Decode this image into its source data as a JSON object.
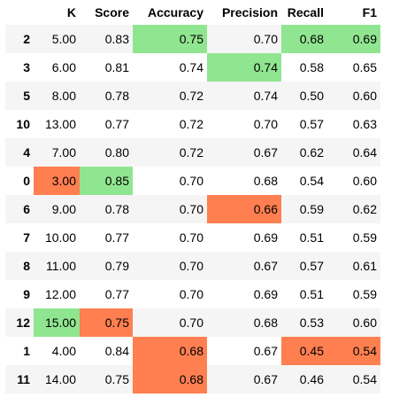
{
  "table": {
    "index_header": "",
    "columns": [
      {
        "key": "K",
        "label": "K"
      },
      {
        "key": "Score",
        "label": "Score"
      },
      {
        "key": "Accuracy",
        "label": "Accuracy"
      },
      {
        "key": "Precision",
        "label": "Precision"
      },
      {
        "key": "Recall",
        "label": "Recall"
      },
      {
        "key": "F1",
        "label": "F1"
      }
    ],
    "highlight_colors": {
      "max": "#90e690",
      "min": "#ff7f50"
    },
    "rows": [
      {
        "index": "2",
        "cells": [
          {
            "v": "5.00"
          },
          {
            "v": "0.83"
          },
          {
            "v": "0.75",
            "hl": "max"
          },
          {
            "v": "0.70"
          },
          {
            "v": "0.68",
            "hl": "max"
          },
          {
            "v": "0.69",
            "hl": "max"
          }
        ]
      },
      {
        "index": "3",
        "cells": [
          {
            "v": "6.00"
          },
          {
            "v": "0.81"
          },
          {
            "v": "0.74"
          },
          {
            "v": "0.74",
            "hl": "max"
          },
          {
            "v": "0.58"
          },
          {
            "v": "0.65"
          }
        ]
      },
      {
        "index": "5",
        "cells": [
          {
            "v": "8.00"
          },
          {
            "v": "0.78"
          },
          {
            "v": "0.72"
          },
          {
            "v": "0.74"
          },
          {
            "v": "0.50"
          },
          {
            "v": "0.60"
          }
        ]
      },
      {
        "index": "10",
        "cells": [
          {
            "v": "13.00"
          },
          {
            "v": "0.77"
          },
          {
            "v": "0.72"
          },
          {
            "v": "0.70"
          },
          {
            "v": "0.57"
          },
          {
            "v": "0.63"
          }
        ]
      },
      {
        "index": "4",
        "cells": [
          {
            "v": "7.00"
          },
          {
            "v": "0.80"
          },
          {
            "v": "0.72"
          },
          {
            "v": "0.67"
          },
          {
            "v": "0.62"
          },
          {
            "v": "0.64"
          }
        ]
      },
      {
        "index": "0",
        "cells": [
          {
            "v": "3.00",
            "hl": "min"
          },
          {
            "v": "0.85",
            "hl": "max"
          },
          {
            "v": "0.70"
          },
          {
            "v": "0.68"
          },
          {
            "v": "0.54"
          },
          {
            "v": "0.60"
          }
        ]
      },
      {
        "index": "6",
        "cells": [
          {
            "v": "9.00"
          },
          {
            "v": "0.78"
          },
          {
            "v": "0.70"
          },
          {
            "v": "0.66",
            "hl": "min"
          },
          {
            "v": "0.59"
          },
          {
            "v": "0.62"
          }
        ]
      },
      {
        "index": "7",
        "cells": [
          {
            "v": "10.00"
          },
          {
            "v": "0.77"
          },
          {
            "v": "0.70"
          },
          {
            "v": "0.69"
          },
          {
            "v": "0.51"
          },
          {
            "v": "0.59"
          }
        ]
      },
      {
        "index": "8",
        "cells": [
          {
            "v": "11.00"
          },
          {
            "v": "0.79"
          },
          {
            "v": "0.70"
          },
          {
            "v": "0.67"
          },
          {
            "v": "0.57"
          },
          {
            "v": "0.61"
          }
        ]
      },
      {
        "index": "9",
        "cells": [
          {
            "v": "12.00"
          },
          {
            "v": "0.77"
          },
          {
            "v": "0.70"
          },
          {
            "v": "0.69"
          },
          {
            "v": "0.51"
          },
          {
            "v": "0.59"
          }
        ]
      },
      {
        "index": "12",
        "cells": [
          {
            "v": "15.00",
            "hl": "max"
          },
          {
            "v": "0.75",
            "hl": "min"
          },
          {
            "v": "0.70"
          },
          {
            "v": "0.68"
          },
          {
            "v": "0.53"
          },
          {
            "v": "0.60"
          }
        ]
      },
      {
        "index": "1",
        "cells": [
          {
            "v": "4.00"
          },
          {
            "v": "0.84"
          },
          {
            "v": "0.68",
            "hl": "min"
          },
          {
            "v": "0.67"
          },
          {
            "v": "0.45",
            "hl": "min"
          },
          {
            "v": "0.54",
            "hl": "min"
          }
        ]
      },
      {
        "index": "11",
        "cells": [
          {
            "v": "14.00"
          },
          {
            "v": "0.75"
          },
          {
            "v": "0.68",
            "hl": "min"
          },
          {
            "v": "0.67"
          },
          {
            "v": "0.46"
          },
          {
            "v": "0.54"
          }
        ]
      }
    ]
  }
}
